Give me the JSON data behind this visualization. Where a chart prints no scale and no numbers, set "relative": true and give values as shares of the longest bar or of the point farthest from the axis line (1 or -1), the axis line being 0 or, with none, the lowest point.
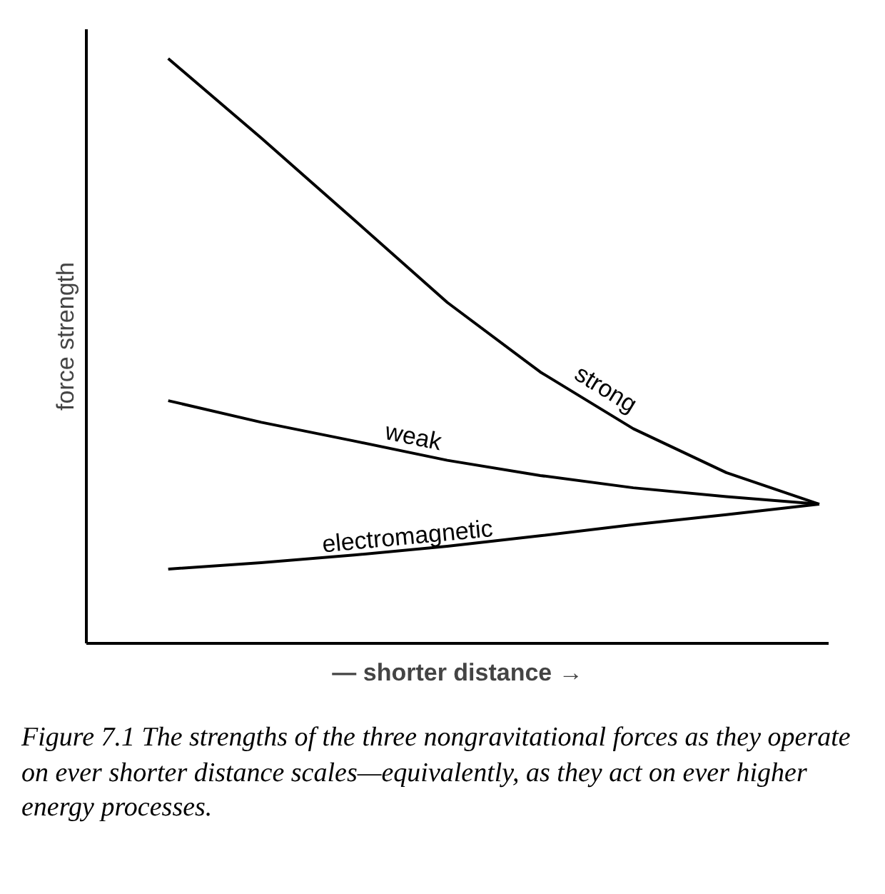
{
  "chart_data": {
    "type": "line",
    "relative": true,
    "xlabel": "— shorter distance →",
    "ylabel": "force strength",
    "categories": [
      null,
      null,
      null,
      null,
      null,
      null,
      null,
      null
    ],
    "series": [
      {
        "name": "strong",
        "color": "#000000",
        "values": [
          1,
          0.864,
          0.724,
          0.583,
          0.464,
          0.367,
          0.292,
          0.238
        ]
      },
      {
        "name": "weak",
        "color": "#000000",
        "values": [
          0.415,
          0.378,
          0.346,
          0.313,
          0.287,
          0.266,
          0.251,
          0.238
        ]
      },
      {
        "name": "electromagnetic",
        "color": "#000000",
        "values": [
          0.127,
          0.138,
          0.151,
          0.166,
          0.184,
          0.203,
          0.22,
          0.238
        ]
      }
    ],
    "grid": false,
    "tick_labels": false,
    "marker": "none",
    "line_style": "solid",
    "annotations": [
      "Figure 7.1 The strengths of the three nongravitational forces as they operate on ever shorter distance scales—equivalently, as they act on ever higher energy processes."
    ]
  }
}
